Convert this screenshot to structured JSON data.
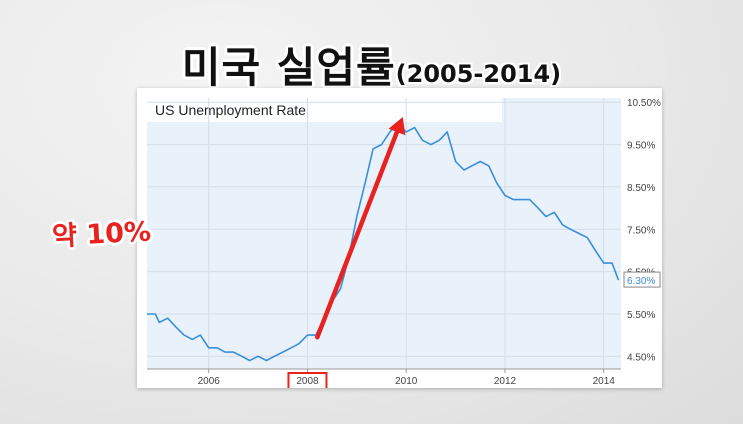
{
  "title": {
    "main": "미국 실업률",
    "sub": "(2005-2014)"
  },
  "annotation": {
    "text": "약 10%",
    "highlighted_year": "2008",
    "arrow_color": "#e8221f"
  },
  "colors": {
    "line": "#3a8fd8",
    "plot_bg": "#e9f1fb",
    "highlight": "#e8221f"
  },
  "chart_data": {
    "type": "line",
    "title": "US Unemployment Rate",
    "xlabel": "",
    "ylabel": "",
    "xlim": [
      2004.75,
      2014.35
    ],
    "ylim": [
      4.2,
      10.6
    ],
    "x_ticks": [
      2006,
      2008,
      2010,
      2012,
      2014
    ],
    "x_tick_labels": [
      "2006",
      "2008",
      "2010",
      "2012",
      "2014"
    ],
    "y_ticks": [
      4.5,
      5.5,
      6.5,
      7.5,
      8.5,
      9.5,
      10.5
    ],
    "y_tick_labels": [
      "4.50%",
      "5.50%",
      "6.50%",
      "7.50%",
      "8.50%",
      "9.50%",
      "10.50%"
    ],
    "last_value_label": "6.30%",
    "grid": true,
    "series": [
      {
        "x": [
          2004.75,
          2004.92,
          2005.0,
          2005.17,
          2005.33,
          2005.5,
          2005.67,
          2005.83,
          2006.0,
          2006.17,
          2006.33,
          2006.5,
          2006.67,
          2006.83,
          2007.0,
          2007.17,
          2007.33,
          2007.5,
          2007.67,
          2007.83,
          2008.0,
          2008.17,
          2008.33,
          2008.5,
          2008.67,
          2008.83,
          2009.0,
          2009.17,
          2009.33,
          2009.5,
          2009.67,
          2009.83,
          2010.0,
          2010.17,
          2010.33,
          2010.5,
          2010.67,
          2010.83,
          2011.0,
          2011.17,
          2011.33,
          2011.5,
          2011.67,
          2011.83,
          2012.0,
          2012.17,
          2012.33,
          2012.5,
          2012.67,
          2012.83,
          2013.0,
          2013.17,
          2013.33,
          2013.5,
          2013.67,
          2013.83,
          2014.0,
          2014.17,
          2014.3
        ],
        "values": [
          5.5,
          5.5,
          5.3,
          5.4,
          5.2,
          5.0,
          4.9,
          5.0,
          4.7,
          4.7,
          4.6,
          4.6,
          4.5,
          4.4,
          4.5,
          4.4,
          4.5,
          4.6,
          4.7,
          4.8,
          5.0,
          5.0,
          5.4,
          5.8,
          6.1,
          6.8,
          7.8,
          8.6,
          9.4,
          9.5,
          9.8,
          10.0,
          9.8,
          9.9,
          9.6,
          9.5,
          9.6,
          9.8,
          9.1,
          8.9,
          9.0,
          9.1,
          9.0,
          8.6,
          8.3,
          8.2,
          8.2,
          8.2,
          8.0,
          7.8,
          7.9,
          7.6,
          7.5,
          7.4,
          7.3,
          7.0,
          6.7,
          6.7,
          6.3
        ]
      }
    ]
  }
}
